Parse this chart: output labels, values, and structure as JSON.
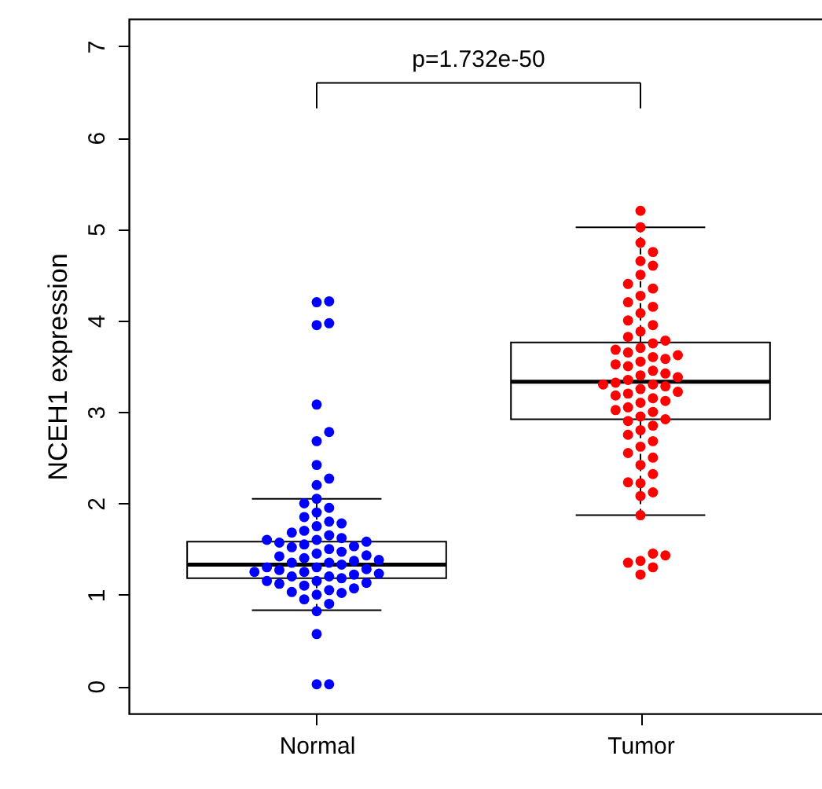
{
  "chart_data": {
    "type": "box",
    "ylabel": "NCEH1 expression",
    "categories": [
      "Normal",
      "Tumor"
    ],
    "ylim": [
      -0.3,
      7.3
    ],
    "yticks": [
      0,
      1,
      2,
      3,
      4,
      5,
      6,
      7
    ],
    "grid": false,
    "marker": "circle",
    "annotations": [
      "p=1.732e-50"
    ],
    "boxes": [
      {
        "low": 0.83,
        "q1": 1.18,
        "median": 1.33,
        "q3": 1.58,
        "high": 2.05
      },
      {
        "low": 1.87,
        "q1": 2.92,
        "median": 3.33,
        "q3": 3.76,
        "high": 5.02
      }
    ],
    "series": [
      {
        "type": "scatter",
        "color": "#0000ff",
        "x": [
          "Normal",
          "Normal",
          "Normal",
          "Normal",
          "Normal",
          "Normal",
          "Normal",
          "Normal",
          "Normal",
          "Normal",
          "Normal",
          "Normal",
          "Normal",
          "Normal",
          "Normal",
          "Normal",
          "Normal",
          "Normal",
          "Normal",
          "Normal",
          "Normal",
          "Normal",
          "Normal",
          "Normal",
          "Normal",
          "Normal",
          "Normal",
          "Normal",
          "Normal",
          "Normal",
          "Normal",
          "Normal",
          "Normal",
          "Normal",
          "Normal",
          "Normal",
          "Normal",
          "Normal",
          "Normal",
          "Normal",
          "Normal",
          "Normal",
          "Normal",
          "Normal",
          "Normal",
          "Normal",
          "Normal",
          "Normal",
          "Normal",
          "Normal",
          "Normal",
          "Normal",
          "Normal",
          "Normal",
          "Normal",
          "Normal",
          "Normal",
          "Normal",
          "Normal",
          "Normal",
          "Normal",
          "Normal",
          "Normal",
          "Normal",
          "Normal",
          "Normal",
          "Normal"
        ],
        "values": [
          0.02,
          0.02,
          0.57,
          0.82,
          0.9,
          0.95,
          1.0,
          1.02,
          1.03,
          1.05,
          1.07,
          1.1,
          1.12,
          1.13,
          1.15,
          1.15,
          1.18,
          1.2,
          1.2,
          1.22,
          1.23,
          1.25,
          1.25,
          1.27,
          1.28,
          1.3,
          1.3,
          1.33,
          1.35,
          1.35,
          1.37,
          1.38,
          1.4,
          1.42,
          1.43,
          1.45,
          1.47,
          1.5,
          1.52,
          1.53,
          1.55,
          1.57,
          1.58,
          1.6,
          1.6,
          1.62,
          1.65,
          1.68,
          1.7,
          1.75,
          1.78,
          1.8,
          1.85,
          1.9,
          1.95,
          2.0,
          2.05,
          2.2,
          2.27,
          2.42,
          2.68,
          2.78,
          3.08,
          3.95,
          3.97,
          4.2,
          4.21
        ]
      },
      {
        "type": "scatter",
        "color": "#ff0000",
        "x": [
          "Tumor",
          "Tumor",
          "Tumor",
          "Tumor",
          "Tumor",
          "Tumor",
          "Tumor",
          "Tumor",
          "Tumor",
          "Tumor",
          "Tumor",
          "Tumor",
          "Tumor",
          "Tumor",
          "Tumor",
          "Tumor",
          "Tumor",
          "Tumor",
          "Tumor",
          "Tumor",
          "Tumor",
          "Tumor",
          "Tumor",
          "Tumor",
          "Tumor",
          "Tumor",
          "Tumor",
          "Tumor",
          "Tumor",
          "Tumor",
          "Tumor",
          "Tumor",
          "Tumor",
          "Tumor",
          "Tumor",
          "Tumor",
          "Tumor",
          "Tumor",
          "Tumor",
          "Tumor",
          "Tumor",
          "Tumor",
          "Tumor",
          "Tumor",
          "Tumor",
          "Tumor",
          "Tumor",
          "Tumor",
          "Tumor",
          "Tumor",
          "Tumor",
          "Tumor",
          "Tumor",
          "Tumor",
          "Tumor",
          "Tumor",
          "Tumor",
          "Tumor",
          "Tumor",
          "Tumor",
          "Tumor",
          "Tumor",
          "Tumor",
          "Tumor",
          "Tumor",
          "Tumor",
          "Tumor",
          "Tumor",
          "Tumor",
          "Tumor"
        ],
        "values": [
          1.22,
          1.3,
          1.35,
          1.37,
          1.43,
          1.45,
          1.87,
          2.08,
          2.12,
          2.22,
          2.23,
          2.32,
          2.42,
          2.5,
          2.55,
          2.62,
          2.68,
          2.75,
          2.8,
          2.85,
          2.9,
          2.92,
          2.95,
          3.0,
          3.02,
          3.05,
          3.1,
          3.12,
          3.15,
          3.18,
          3.2,
          3.22,
          3.25,
          3.28,
          3.3,
          3.3,
          3.32,
          3.35,
          3.38,
          3.4,
          3.42,
          3.45,
          3.5,
          3.52,
          3.55,
          3.58,
          3.6,
          3.62,
          3.65,
          3.68,
          3.7,
          3.75,
          3.78,
          3.82,
          3.88,
          3.95,
          4.0,
          4.08,
          4.15,
          4.2,
          4.27,
          4.35,
          4.4,
          4.5,
          4.6,
          4.65,
          4.75,
          4.85,
          5.02,
          5.2
        ]
      }
    ]
  }
}
